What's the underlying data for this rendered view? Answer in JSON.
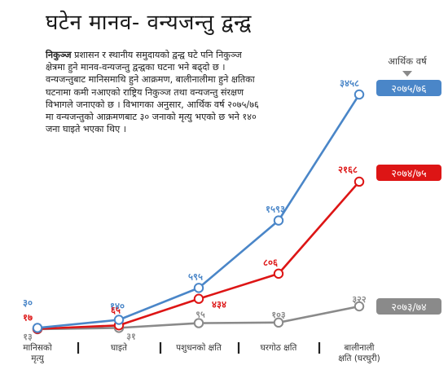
{
  "title": "घटेन मानव- वन्यजन्तु द्वन्द्व",
  "intro": {
    "lead": "निकुञ्ज",
    "text": " प्रशासन र स्थानीय समुदायको द्वन्द्व घटे पनि निकुञ्ज क्षेत्रमा हुने मानव-वन्यजन्तु द्वन्द्वका घटना भने बढ्दो छ । वन्यजन्तुबाट मानिसमाथि हुने आक्रमण, बालीनालीमा हुने क्षतिका घटनामा कमी नआएको राष्ट्रिय निकुञ्ज तथा वन्यजन्तु संरक्षण विभागले जनाएको छ । विभागका अनुसार, आर्थिक वर्ष २०७५/७६ मा वन्यजन्तुको आक्रमणबाट ३० जनाको मृत्यु भएको छ भने १४० जना घाइते भएका थिए ।"
  },
  "chart_data": {
    "type": "line",
    "legend_title": "आर्थिक वर्ष",
    "categories": [
      [
        "मानिसको",
        "मृत्यु"
      ],
      [
        "घाइते"
      ],
      [
        "पशुधनको क्षति"
      ],
      [
        "घरगोठ क्षति"
      ],
      [
        "बालीनाली",
        "क्षति (घरघुरी)"
      ]
    ],
    "series": [
      {
        "name": "२०७५/७६",
        "color": "#4a86c8",
        "values": [
          30,
          140,
          595,
          1593,
          3458
        ],
        "labels": [
          "३०",
          "१४०",
          "५९५",
          "१५९३",
          "३४५८"
        ]
      },
      {
        "name": "२०७४/७५",
        "color": "#dd1515",
        "values": [
          17,
          65,
          434,
          806,
          2168
        ],
        "labels": [
          "१७",
          "६५",
          "४३४",
          "८०६",
          "२१६८"
        ]
      },
      {
        "name": "२०७३/७४",
        "color": "#8a8a8a",
        "values": [
          13,
          31,
          95,
          103,
          322
        ],
        "labels": [
          "१३",
          "३१",
          "९५",
          "१०३",
          "३२२"
        ]
      }
    ]
  }
}
